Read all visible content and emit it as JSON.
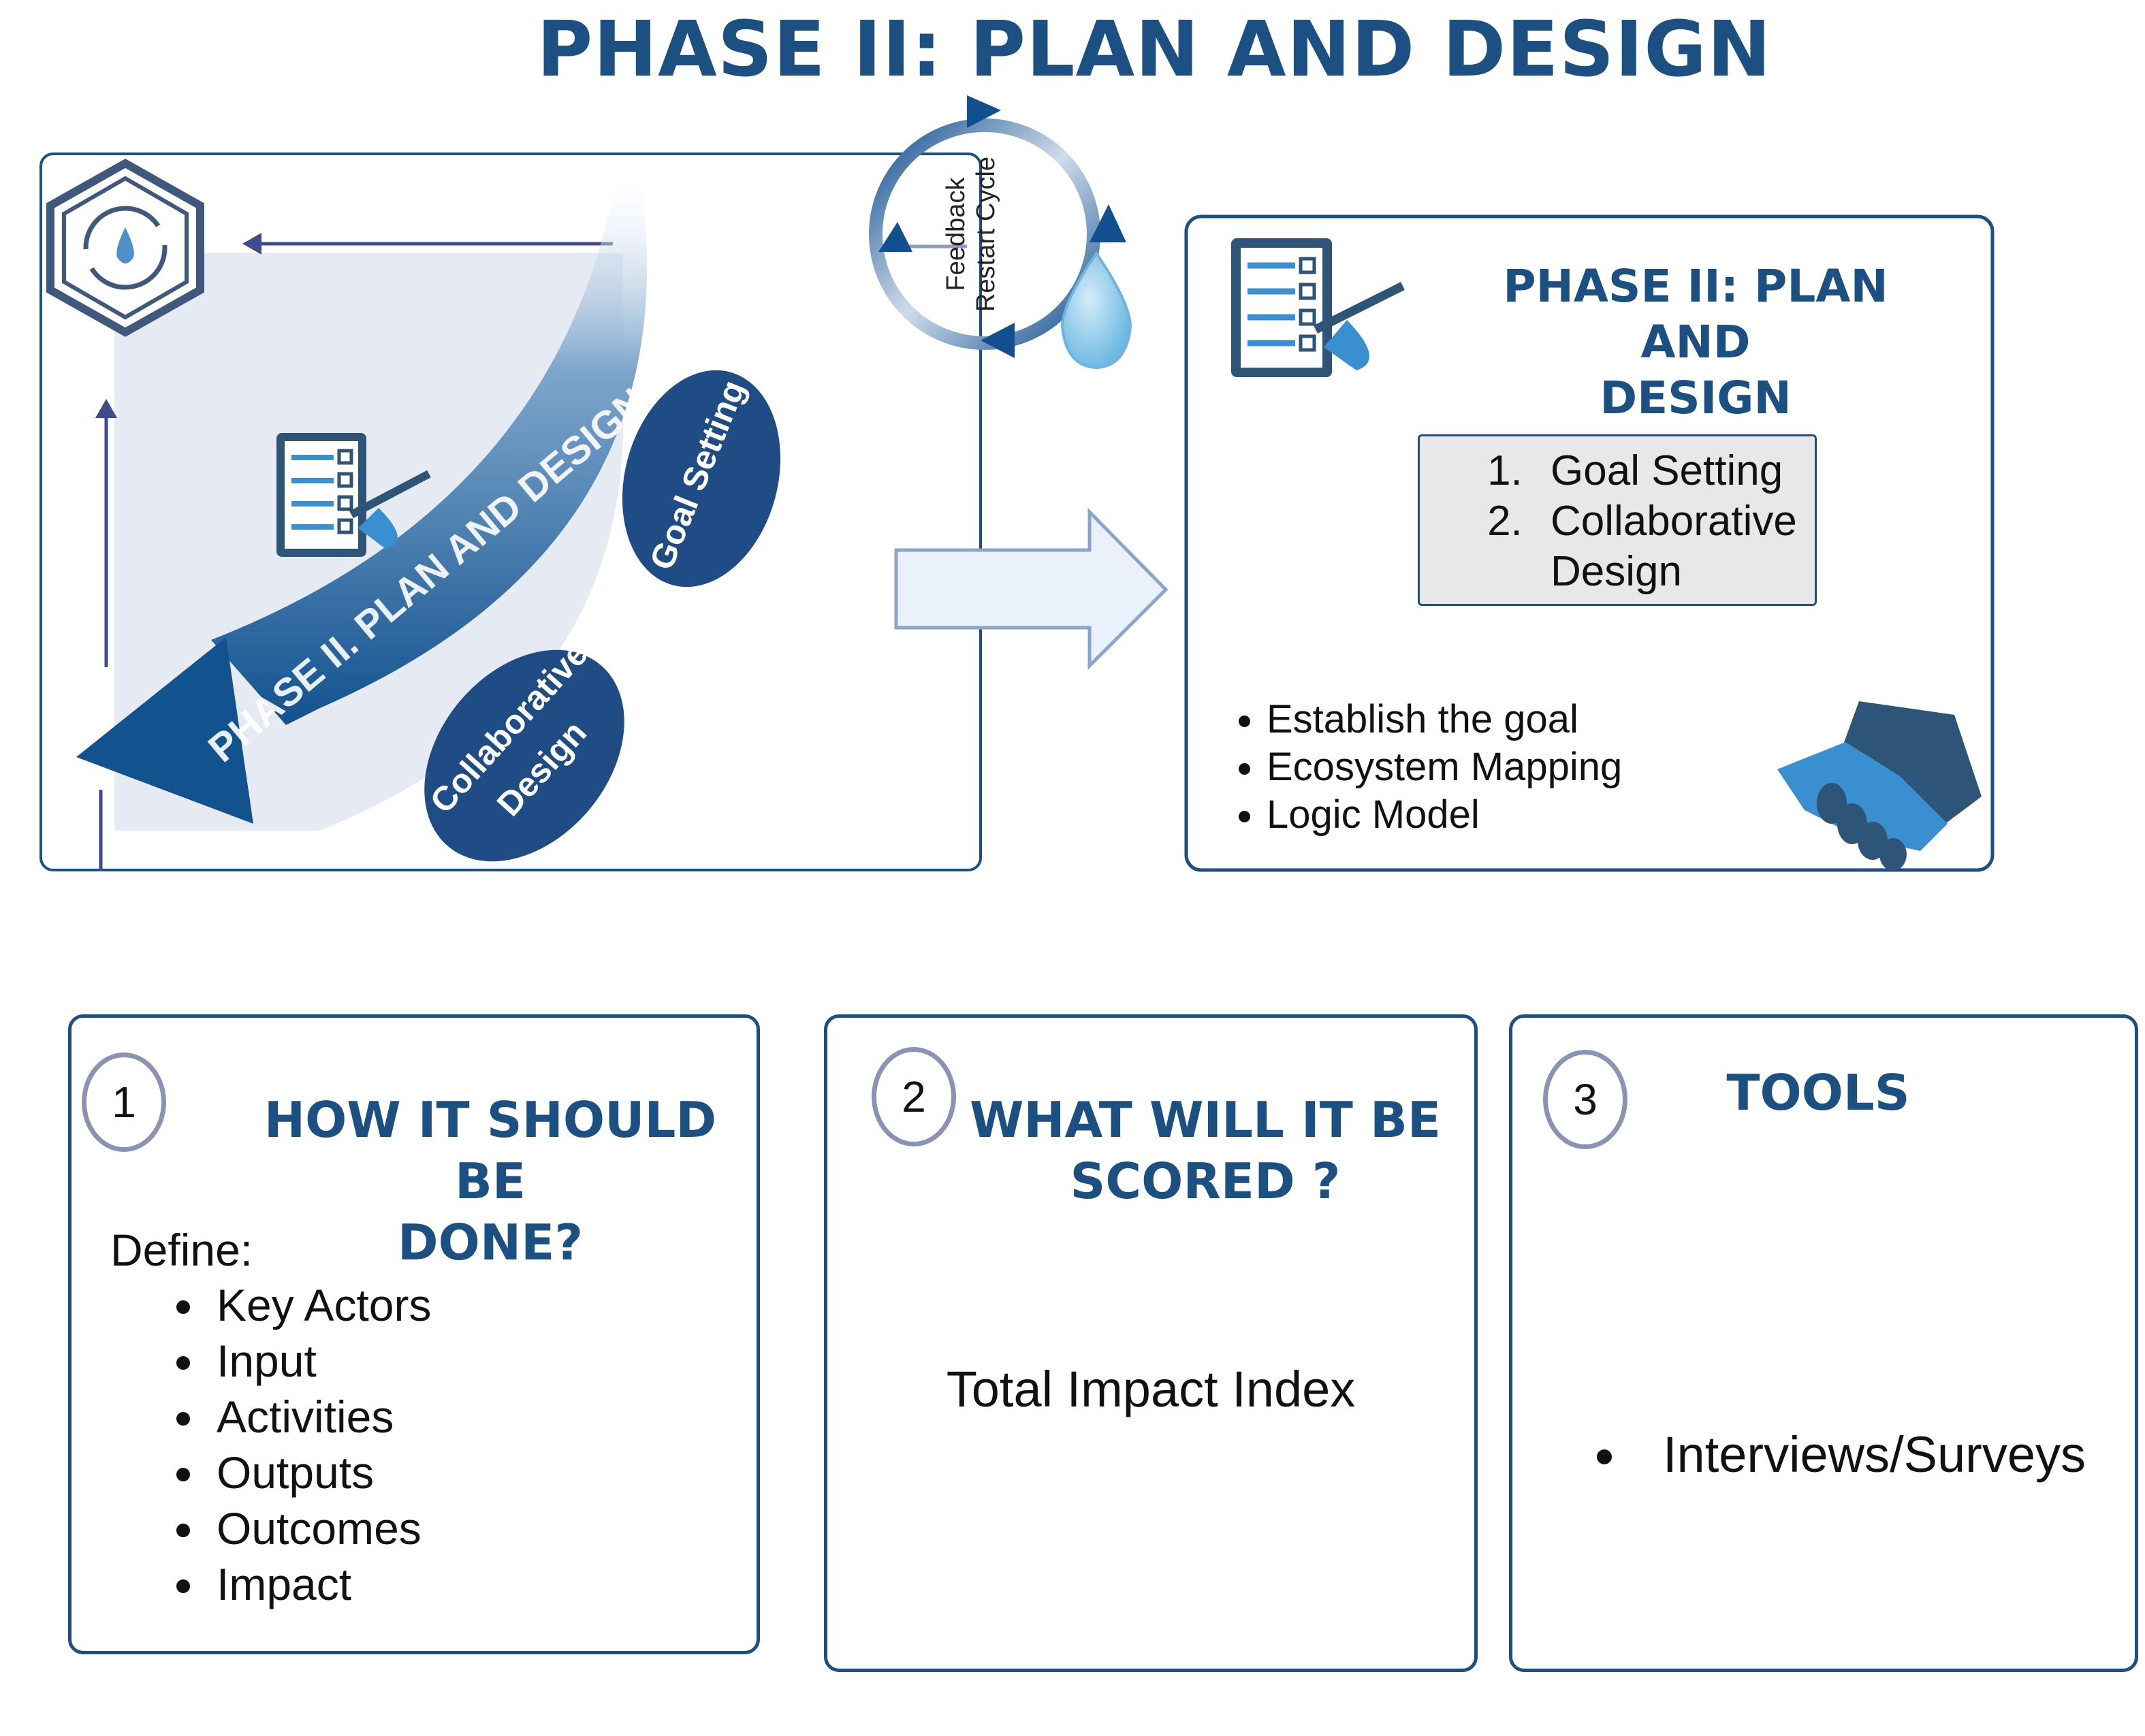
{
  "page_title": "PHASE II: PLAN AND DESIGN",
  "cycle": {
    "arc_label": "PHASE II. PLAN AND DESIGN",
    "step_goal_setting": "Goal Setting",
    "step_collaborative_line1": "Collaborative",
    "step_collaborative_line2": "Design",
    "feedback_line1": "Feedback",
    "feedback_line2": "Restart Cycle"
  },
  "summary": {
    "title_line1": "PHASE II: PLAN AND",
    "title_line2": "DESIGN",
    "steps": [
      "Goal Setting",
      "Collaborative Design"
    ],
    "bullets": [
      "Establish the goal",
      "Ecosystem Mapping",
      "Logic Model"
    ]
  },
  "cards": {
    "how": {
      "number": "1",
      "heading_line1": "HOW IT SHOULD BE",
      "heading_line2": "DONE?",
      "define_label": "Define:",
      "items": [
        "Key Actors",
        "Input",
        "Activities",
        "Outputs",
        "Outcomes",
        "Impact"
      ]
    },
    "score": {
      "number": "2",
      "heading_line1": "WHAT WILL IT BE",
      "heading_line2": "SCORED ?",
      "text": "Total Impact Index"
    },
    "tools": {
      "number": "3",
      "heading": "TOOLS",
      "items": [
        "Interviews/Surveys"
      ]
    }
  },
  "colors": {
    "dark_blue": "#1c4f82",
    "navy_ellipse": "#1f4c85",
    "light_blue": "#3a8fd1",
    "pale_panel": "#e6eaf3"
  },
  "icons": [
    "hexagon-logo-icon",
    "water-drop-icon",
    "checklist-icon",
    "handshake-icon",
    "right-arrow-icon"
  ]
}
